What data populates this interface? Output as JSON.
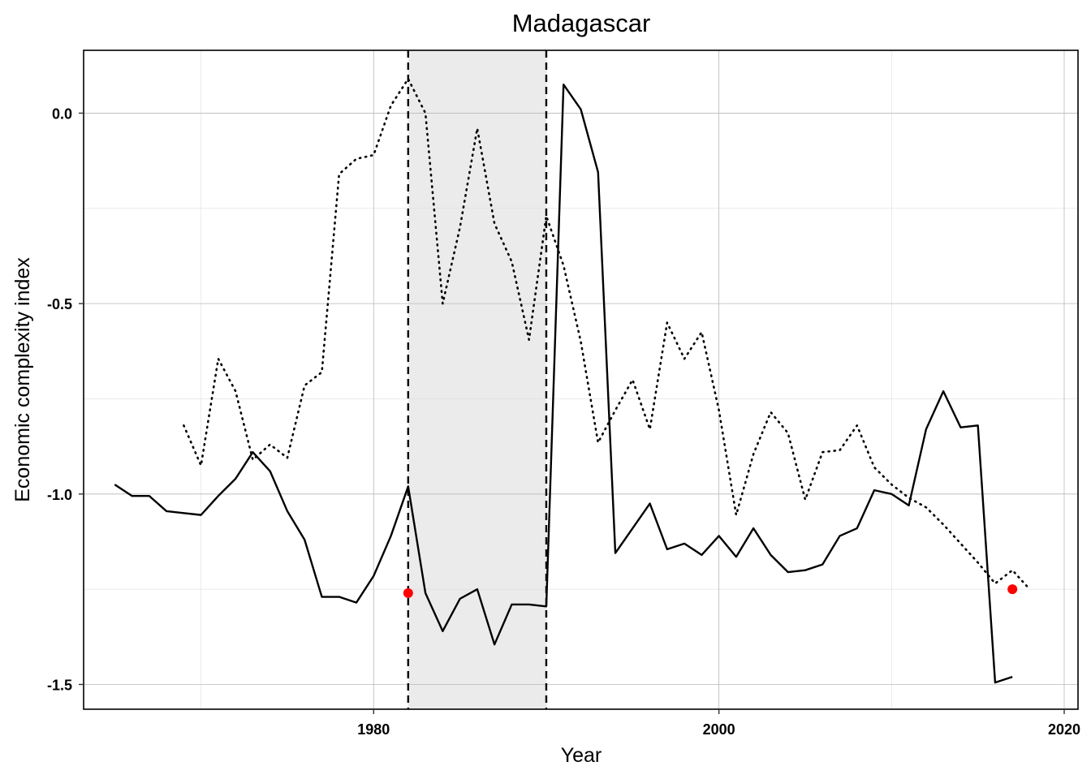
{
  "chart_data": {
    "type": "line",
    "title": "Madagascar",
    "xlabel": "Year",
    "ylabel": "Economic complexity index",
    "xlim": [
      1963.2,
      2020.8
    ],
    "ylim": [
      -1.565,
      0.165
    ],
    "x_ticks": [
      1980,
      2000,
      2020
    ],
    "y_ticks": [
      0.0,
      -0.5,
      -1.0,
      -1.5
    ],
    "x_tick_labels": [
      "1980",
      "2000",
      "2020"
    ],
    "y_tick_labels": [
      "0.0",
      "-0.5",
      "-1.0",
      "-1.5"
    ],
    "grid": true,
    "legend": "none",
    "shaded_region": {
      "x": [
        1982,
        1990
      ],
      "color": "#ebebeb"
    },
    "vlines": [
      {
        "x": 1982,
        "style": "dashed"
      },
      {
        "x": 1990,
        "style": "dashed"
      }
    ],
    "series": [
      {
        "style": "solid",
        "color": "#000000",
        "points": [
          [
            1965,
            -0.975
          ],
          [
            1966,
            -1.005
          ],
          [
            1967,
            -1.005
          ],
          [
            1968,
            -1.045
          ],
          [
            1969,
            -1.05
          ],
          [
            1970,
            -1.055
          ],
          [
            1971,
            -1.005
          ],
          [
            1972,
            -0.96
          ],
          [
            1973,
            -0.89
          ],
          [
            1974,
            -0.94
          ],
          [
            1975,
            -1.045
          ],
          [
            1976,
            -1.12
          ],
          [
            1977,
            -1.27
          ],
          [
            1978,
            -1.27
          ],
          [
            1979,
            -1.285
          ],
          [
            1980,
            -1.215
          ],
          [
            1981,
            -1.11
          ],
          [
            1982,
            -0.98
          ],
          [
            1983,
            -1.26
          ],
          [
            1984,
            -1.36
          ],
          [
            1985,
            -1.275
          ],
          [
            1986,
            -1.25
          ],
          [
            1987,
            -1.395
          ],
          [
            1988,
            -1.29
          ],
          [
            1989,
            -1.29
          ],
          [
            1990,
            -1.295
          ],
          [
            1991,
            0.075
          ],
          [
            1992,
            0.01
          ],
          [
            1993,
            -0.155
          ],
          [
            1994,
            -1.155
          ],
          [
            1995,
            -1.09
          ],
          [
            1996,
            -1.025
          ],
          [
            1997,
            -1.145
          ],
          [
            1998,
            -1.13
          ],
          [
            1999,
            -1.16
          ],
          [
            2000,
            -1.11
          ],
          [
            2001,
            -1.165
          ],
          [
            2002,
            -1.09
          ],
          [
            2003,
            -1.16
          ],
          [
            2004,
            -1.205
          ],
          [
            2005,
            -1.2
          ],
          [
            2006,
            -1.185
          ],
          [
            2007,
            -1.11
          ],
          [
            2008,
            -1.09
          ],
          [
            2009,
            -0.99
          ],
          [
            2010,
            -1.0
          ],
          [
            2011,
            -1.03
          ],
          [
            2012,
            -0.83
          ],
          [
            2013,
            -0.73
          ],
          [
            2014,
            -0.825
          ],
          [
            2015,
            -0.82
          ],
          [
            2016,
            -1.495
          ],
          [
            2017,
            -1.48
          ]
        ]
      },
      {
        "style": "dotted",
        "color": "#000000",
        "points": [
          [
            1969,
            -0.82
          ],
          [
            1970,
            -0.925
          ],
          [
            1971,
            -0.645
          ],
          [
            1972,
            -0.73
          ],
          [
            1973,
            -0.91
          ],
          [
            1974,
            -0.87
          ],
          [
            1975,
            -0.905
          ],
          [
            1976,
            -0.715
          ],
          [
            1977,
            -0.68
          ],
          [
            1978,
            -0.16
          ],
          [
            1979,
            -0.12
          ],
          [
            1980,
            -0.11
          ],
          [
            1981,
            0.02
          ],
          [
            1982,
            0.09
          ],
          [
            1983,
            0.0
          ],
          [
            1984,
            -0.5
          ],
          [
            1985,
            -0.3
          ],
          [
            1986,
            -0.04
          ],
          [
            1987,
            -0.29
          ],
          [
            1988,
            -0.39
          ],
          [
            1989,
            -0.595
          ],
          [
            1990,
            -0.27
          ],
          [
            1991,
            -0.4
          ],
          [
            1992,
            -0.6
          ],
          [
            1993,
            -0.865
          ],
          [
            1994,
            -0.78
          ],
          [
            1995,
            -0.7
          ],
          [
            1996,
            -0.83
          ],
          [
            1997,
            -0.55
          ],
          [
            1998,
            -0.645
          ],
          [
            1999,
            -0.575
          ],
          [
            2000,
            -0.78
          ],
          [
            2001,
            -1.055
          ],
          [
            2002,
            -0.895
          ],
          [
            2003,
            -0.785
          ],
          [
            2004,
            -0.84
          ],
          [
            2005,
            -1.015
          ],
          [
            2006,
            -0.89
          ],
          [
            2007,
            -0.885
          ],
          [
            2008,
            -0.82
          ],
          [
            2009,
            -0.93
          ],
          [
            2010,
            -0.975
          ],
          [
            2011,
            -1.01
          ],
          [
            2012,
            -1.035
          ],
          [
            2013,
            -1.08
          ],
          [
            2014,
            -1.13
          ],
          [
            2015,
            -1.18
          ],
          [
            2016,
            -1.235
          ],
          [
            2017,
            -1.2
          ],
          [
            2018,
            -1.25
          ]
        ]
      }
    ],
    "highlight_points": [
      {
        "x": 1982,
        "y": -1.26,
        "color": "#ff0000"
      },
      {
        "x": 2017,
        "y": -1.25,
        "color": "#ff0000"
      }
    ]
  }
}
